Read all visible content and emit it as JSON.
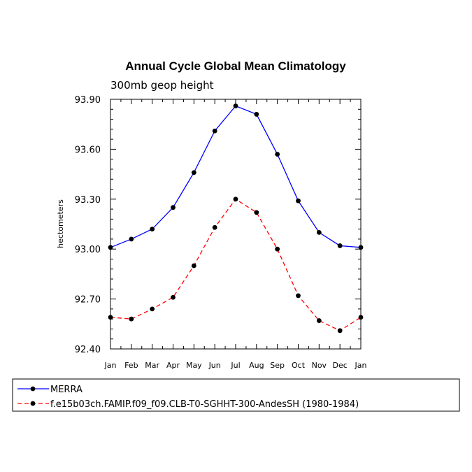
{
  "chart_data": {
    "type": "line",
    "title": "Annual Cycle Global Mean Climatology",
    "subtitle": "300mb geop height",
    "xlabel": "",
    "ylabel": "hectometers",
    "categories": [
      "Jan",
      "Feb",
      "Mar",
      "Apr",
      "May",
      "Jun",
      "Jul",
      "Aug",
      "Sep",
      "Oct",
      "Nov",
      "Dec",
      "Jan"
    ],
    "y_tick_labels": [
      "93.90",
      "93.60",
      "93.30",
      "93.00",
      "92.70",
      "92.40"
    ],
    "y_ticks": [
      93.9,
      93.6,
      93.3,
      93.0,
      92.7,
      92.4
    ],
    "ylim": [
      92.4,
      93.9
    ],
    "grid": false,
    "legend_position": "bottom",
    "series": [
      {
        "name": "MERRA",
        "color": "#0000ff",
        "line_style": "solid",
        "values": [
          93.01,
          93.06,
          93.12,
          93.25,
          93.46,
          93.71,
          93.86,
          93.81,
          93.57,
          93.29,
          93.1,
          93.02,
          93.01
        ]
      },
      {
        "name": "f.e15b03ch.FAMIP.f09_f09.CLB-T0-SGHHT-300-AndesSH (1980-1984)",
        "color": "#ff0000",
        "line_style": "dashed",
        "values": [
          92.59,
          92.58,
          92.64,
          92.71,
          92.9,
          93.13,
          93.3,
          93.22,
          93.0,
          92.72,
          92.57,
          92.51,
          92.59
        ]
      }
    ]
  }
}
